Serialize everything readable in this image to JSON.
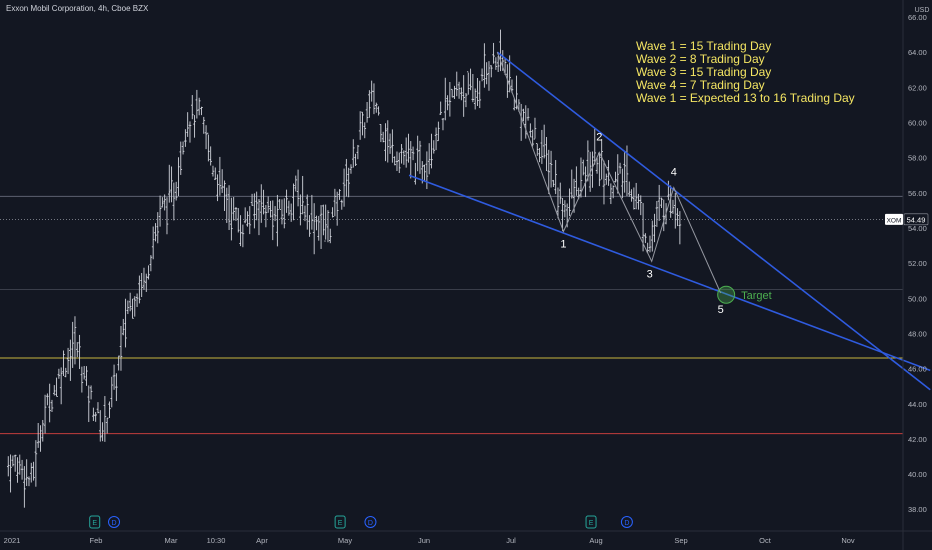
{
  "chart_data": {
    "type": "candlestick",
    "title": "Exxon Mobil Corporation, 4h, Cboe BZX",
    "currency": "USD",
    "ylim": [
      37,
      66
    ],
    "y_ticks": [
      "66.00",
      "64.00",
      "62.00",
      "60.00",
      "58.00",
      "56.00",
      "54.00",
      "52.00",
      "50.00",
      "48.00",
      "46.00",
      "44.00",
      "42.00",
      "40.00",
      "38.00"
    ],
    "x_ticks": [
      "2021",
      "Feb",
      "Mar",
      "10:30",
      "Apr",
      "May",
      "Jun",
      "Jul",
      "Aug",
      "Sep",
      "Oct",
      "Nov"
    ],
    "last_price": {
      "symbol": "XOM",
      "value": "54.49"
    },
    "price_series": [
      {
        "date": "2021-01-04",
        "price": 40.5
      },
      {
        "date": "2021-01-08",
        "price": 39.5
      },
      {
        "date": "2021-01-12",
        "price": 43.0
      },
      {
        "date": "2021-01-18",
        "price": 45.5
      },
      {
        "date": "2021-01-24",
        "price": 47.5
      },
      {
        "date": "2021-01-29",
        "price": 44.5
      },
      {
        "date": "2021-02-03",
        "price": 42.5
      },
      {
        "date": "2021-02-08",
        "price": 45.5
      },
      {
        "date": "2021-02-12",
        "price": 49.5
      },
      {
        "date": "2021-02-18",
        "price": 51.0
      },
      {
        "date": "2021-02-24",
        "price": 55.0
      },
      {
        "date": "2021-03-01",
        "price": 56.0
      },
      {
        "date": "2021-03-05",
        "price": 60.0
      },
      {
        "date": "2021-03-10",
        "price": 60.5
      },
      {
        "date": "2021-03-15",
        "price": 57.5
      },
      {
        "date": "2021-03-20",
        "price": 55.5
      },
      {
        "date": "2021-03-25",
        "price": 54.0
      },
      {
        "date": "2021-04-01",
        "price": 55.5
      },
      {
        "date": "2021-04-07",
        "price": 54.5
      },
      {
        "date": "2021-04-14",
        "price": 56.0
      },
      {
        "date": "2021-04-20",
        "price": 54.5
      },
      {
        "date": "2021-04-26",
        "price": 54.0
      },
      {
        "date": "2021-05-02",
        "price": 56.5
      },
      {
        "date": "2021-05-08",
        "price": 59.5
      },
      {
        "date": "2021-05-12",
        "price": 61.5
      },
      {
        "date": "2021-05-18",
        "price": 58.5
      },
      {
        "date": "2021-05-24",
        "price": 58.0
      },
      {
        "date": "2021-05-30",
        "price": 57.5
      },
      {
        "date": "2021-06-05",
        "price": 60.0
      },
      {
        "date": "2021-06-12",
        "price": 62.0
      },
      {
        "date": "2021-06-18",
        "price": 61.5
      },
      {
        "date": "2021-06-24",
        "price": 63.5
      },
      {
        "date": "2021-06-28",
        "price": 63.5
      },
      {
        "date": "2021-07-02",
        "price": 61.5
      },
      {
        "date": "2021-07-08",
        "price": 59.5
      },
      {
        "date": "2021-07-14",
        "price": 58.0
      },
      {
        "date": "2021-07-20",
        "price": 55.0
      },
      {
        "date": "2021-07-26",
        "price": 56.5
      },
      {
        "date": "2021-08-01",
        "price": 58.0
      },
      {
        "date": "2021-08-06",
        "price": 56.5
      },
      {
        "date": "2021-08-12",
        "price": 57.0
      },
      {
        "date": "2021-08-17",
        "price": 55.0
      },
      {
        "date": "2021-08-20",
        "price": 53.0
      },
      {
        "date": "2021-08-24",
        "price": 55.0
      },
      {
        "date": "2021-08-28",
        "price": 55.8
      },
      {
        "date": "2021-09-01",
        "price": 54.5
      }
    ],
    "horizontal_lines": [
      {
        "price": 46.6,
        "color": "#c7b43f"
      },
      {
        "price": 42.3,
        "color": "#c23d3d"
      },
      {
        "price": 55.8,
        "color": "#5d6170"
      },
      {
        "price": 50.5,
        "color": "#3a3e4a"
      }
    ],
    "trendlines": [
      {
        "from": {
          "date": "2021-06-26",
          "price": 64.0
        },
        "to": {
          "date": "2021-11-30",
          "price": 44.8
        },
        "color": "#2f5bdf"
      },
      {
        "from": {
          "date": "2021-05-25",
          "price": 57.0
        },
        "to": {
          "date": "2021-11-30",
          "price": 45.9
        },
        "color": "#2f5bdf"
      }
    ],
    "wave_path": [
      {
        "date": "2021-06-26",
        "price": 64.0,
        "label": ""
      },
      {
        "date": "2021-07-20",
        "price": 53.8,
        "label": "1"
      },
      {
        "date": "2021-08-02",
        "price": 58.3,
        "label": "2"
      },
      {
        "date": "2021-08-21",
        "price": 52.1,
        "label": "3"
      },
      {
        "date": "2021-08-29",
        "price": 56.3,
        "label": "4"
      },
      {
        "date": "2021-09-15",
        "price": 50.3,
        "label": "5"
      }
    ],
    "target": {
      "date": "2021-09-17",
      "price": 50.2,
      "label": "Target",
      "color": "#4caf50"
    },
    "events": [
      {
        "date": "2021-01-31",
        "label": "E",
        "kind": "earnings"
      },
      {
        "date": "2021-02-07",
        "label": "D",
        "kind": "dividend"
      },
      {
        "date": "2021-04-30",
        "label": "E",
        "kind": "earnings"
      },
      {
        "date": "2021-05-11",
        "label": "D",
        "kind": "dividend"
      },
      {
        "date": "2021-07-30",
        "label": "E",
        "kind": "earnings"
      },
      {
        "date": "2021-08-12",
        "label": "D",
        "kind": "dividend"
      }
    ],
    "annotations": [
      "Wave 1 = 15 Trading Day",
      "Wave 2 = 8 Trading Day",
      "Wave 3 = 15 Trading Day",
      "Wave 4 = 7 Trading Day",
      "Wave 1 = Expected 13 to 16 Trading Day"
    ],
    "colors": {
      "background": "#131722",
      "bars": "#d1d4dc",
      "text": "#b2b5be",
      "trendline": "#2f5bdf",
      "wave": "#9598a1",
      "annotation": "#f5e663",
      "event_e": "#26a69a",
      "event_d": "#2962ff"
    }
  }
}
